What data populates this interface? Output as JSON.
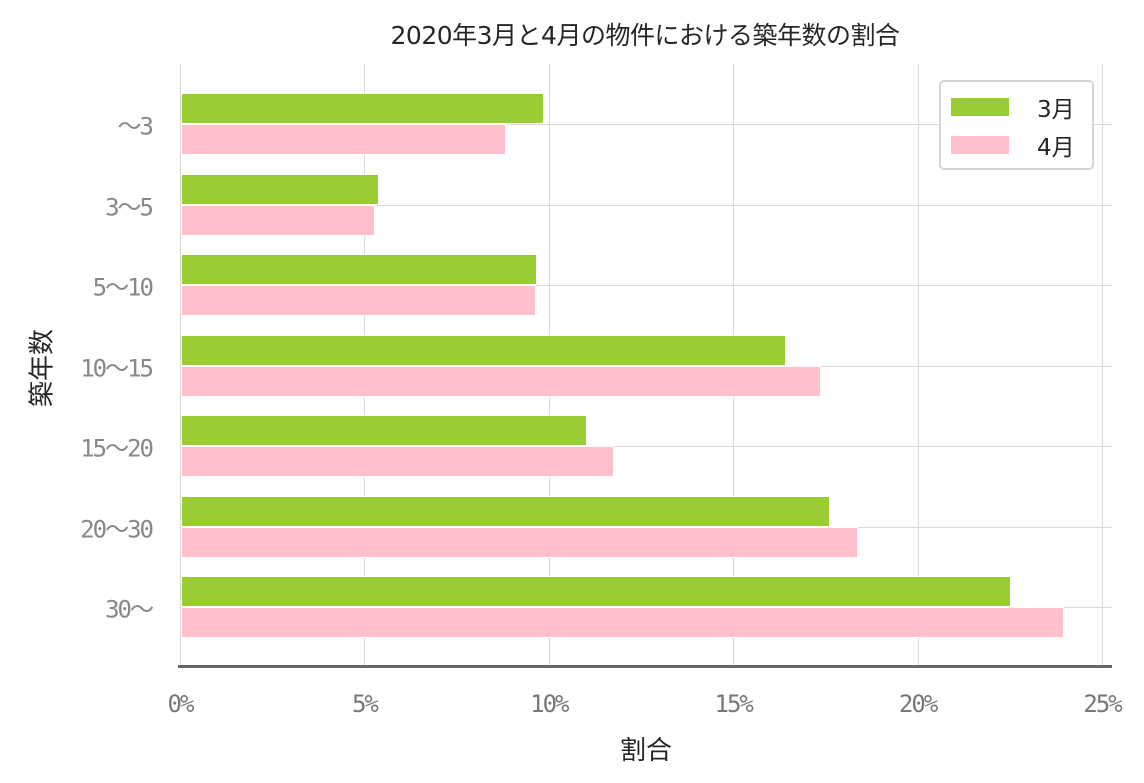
{
  "chart_data": {
    "type": "bar",
    "orientation": "horizontal",
    "title": "2020年3月と4月の物件における築年数の割合",
    "xlabel": "割合",
    "ylabel": "築年数",
    "categories": [
      "〜3",
      "3〜5",
      "5〜10",
      "10〜15",
      "15〜20",
      "20〜30",
      "30〜"
    ],
    "series": [
      {
        "name": "3月",
        "color": "#9acd32",
        "values": [
          9.85,
          5.38,
          9.66,
          16.4,
          11.0,
          17.6,
          22.5
        ]
      },
      {
        "name": "4月",
        "color": "#ffc0cb",
        "values": [
          8.82,
          5.27,
          9.62,
          17.36,
          11.75,
          18.35,
          23.95
        ]
      }
    ],
    "xlim": [
      0,
      25
    ],
    "xticks": [
      0,
      5,
      10,
      15,
      20,
      25
    ],
    "xtick_labels": [
      "0%",
      "5%",
      "10%",
      "15%",
      "20%",
      "25%"
    ],
    "grid": true,
    "legend_position": "upper right"
  },
  "title": "2020年3月と4月の物件における築年数の割合",
  "xlabel": "割合",
  "ylabel": "築年数",
  "legend": [
    {
      "label": "3月",
      "color": "#9acd32"
    },
    {
      "label": "4月",
      "color": "#ffc0cb"
    }
  ],
  "xtick_labels": [
    "0%",
    "5%",
    "10%",
    "15%",
    "20%",
    "25%"
  ],
  "ytick_labels": [
    "〜3",
    "3〜5",
    "5〜10",
    "10〜15",
    "15〜20",
    "20〜30",
    "30〜"
  ]
}
